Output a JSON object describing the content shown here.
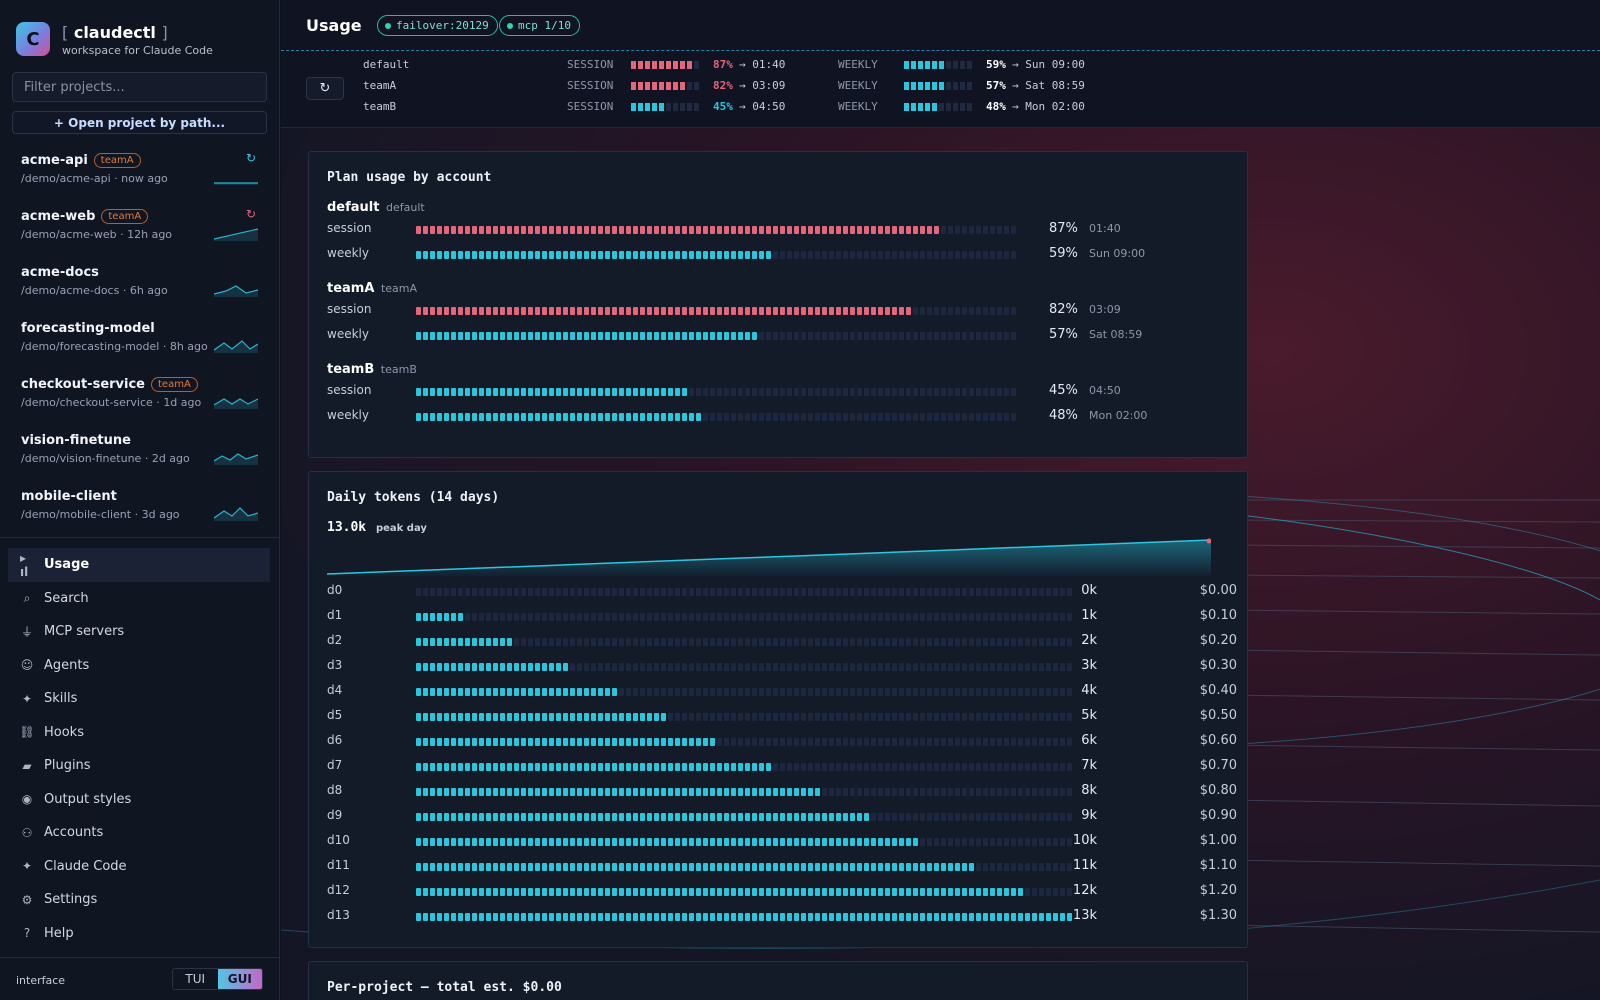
{
  "brand": {
    "logo_letter": "C",
    "bracket_open": "[",
    "name": "claudectl",
    "bracket_close": "]",
    "subtitle": "workspace for Claude Code"
  },
  "sidebar": {
    "filter_placeholder": "Filter projects...",
    "open_project_label": "+ Open project by path...",
    "projects": [
      {
        "name": "acme-api",
        "tag": "teamA",
        "path": "/demo/acme-api",
        "age": "now ago",
        "refresh": true,
        "refresh_color": "#3cc6e8"
      },
      {
        "name": "acme-web",
        "tag": "teamA",
        "path": "/demo/acme-web",
        "age": "12h ago",
        "refresh": true,
        "refresh_color": "#e4667a"
      },
      {
        "name": "acme-docs",
        "tag": "",
        "path": "/demo/acme-docs",
        "age": "6h ago"
      },
      {
        "name": "forecasting-model",
        "tag": "",
        "path": "/demo/forecasting-model",
        "age": "8h ago"
      },
      {
        "name": "checkout-service",
        "tag": "teamA",
        "path": "/demo/checkout-service",
        "age": "1d ago"
      },
      {
        "name": "vision-finetune",
        "tag": "",
        "path": "/demo/vision-finetune",
        "age": "2d ago"
      },
      {
        "name": "mobile-client",
        "tag": "",
        "path": "/demo/mobile-client",
        "age": "3d ago"
      }
    ],
    "nav": [
      {
        "label": "Usage",
        "icon": "bar-chart-icon",
        "glyph": "▸ ıl",
        "active": true
      },
      {
        "label": "Search",
        "icon": "search-icon",
        "glyph": "⌕"
      },
      {
        "label": "MCP servers",
        "icon": "plug-icon",
        "glyph": "⏚"
      },
      {
        "label": "Agents",
        "icon": "robot-icon",
        "glyph": "☺"
      },
      {
        "label": "Skills",
        "icon": "sparkle-icon",
        "glyph": "✦"
      },
      {
        "label": "Hooks",
        "icon": "link-icon",
        "glyph": "⛓"
      },
      {
        "label": "Plugins",
        "icon": "folder-icon",
        "glyph": "▰"
      },
      {
        "label": "Output styles",
        "icon": "palette-icon",
        "glyph": "◉"
      },
      {
        "label": "Accounts",
        "icon": "people-icon",
        "glyph": "⚇"
      },
      {
        "label": "Claude Code",
        "icon": "sparkle-icon",
        "glyph": "✦"
      },
      {
        "label": "Settings",
        "icon": "gear-icon",
        "glyph": "⚙"
      },
      {
        "label": "Help",
        "icon": "help-icon",
        "glyph": "?"
      }
    ],
    "interface_label": "interface",
    "interface_options": {
      "tui": "TUI",
      "gui": "GUI",
      "selected": "GUI"
    }
  },
  "header": {
    "title": "Usage",
    "pills": [
      "failover:20129",
      "mcp 1/10"
    ],
    "refresh_glyph": "↻"
  },
  "status_strip": [
    {
      "account": "default",
      "session_label": "SESSION",
      "session_pct": "87%",
      "session_reset": "→ 01:40",
      "session_level": 0.87,
      "session_color": "#e4667a",
      "weekly_label": "WEEKLY",
      "weekly_pct": "59%",
      "weekly_reset": "→ Sun 09:00",
      "weekly_level": 0.59,
      "weekly_color": "#28c7dd"
    },
    {
      "account": "teamA",
      "session_label": "SESSION",
      "session_pct": "82%",
      "session_reset": "→ 03:09",
      "session_level": 0.82,
      "session_color": "#e4667a",
      "weekly_label": "WEEKLY",
      "weekly_pct": "57%",
      "weekly_reset": "→ Sat 08:59",
      "weekly_level": 0.57,
      "weekly_color": "#28c7dd"
    },
    {
      "account": "teamB",
      "session_label": "SESSION",
      "session_pct": "45%",
      "session_reset": "→ 04:50",
      "session_level": 0.45,
      "session_color": "#28c7dd",
      "weekly_label": "WEEKLY",
      "weekly_pct": "48%",
      "weekly_reset": "→ Mon 02:00",
      "weekly_level": 0.48,
      "weekly_color": "#28c7dd"
    }
  ],
  "plan_usage": {
    "title": "Plan usage by account",
    "accounts": [
      {
        "name": "default",
        "sub": "default",
        "rows": [
          {
            "label": "session",
            "level": 0.87,
            "pct": "87%",
            "reset": "01:40",
            "color": "#e4667a"
          },
          {
            "label": "weekly",
            "level": 0.59,
            "pct": "59%",
            "reset": "Sun 09:00",
            "color": "#28c7dd"
          }
        ]
      },
      {
        "name": "teamA",
        "sub": "teamA",
        "rows": [
          {
            "label": "session",
            "level": 0.82,
            "pct": "82%",
            "reset": "03:09",
            "color": "#e4667a"
          },
          {
            "label": "weekly",
            "level": 0.57,
            "pct": "57%",
            "reset": "Sat 08:59",
            "color": "#28c7dd"
          }
        ]
      },
      {
        "name": "teamB",
        "sub": "teamB",
        "rows": [
          {
            "label": "session",
            "level": 0.45,
            "pct": "45%",
            "reset": "04:50",
            "color": "#28c7dd"
          },
          {
            "label": "weekly",
            "level": 0.48,
            "pct": "48%",
            "reset": "Mon 02:00",
            "color": "#28c7dd"
          }
        ]
      }
    ]
  },
  "daily_tokens": {
    "title": "Daily tokens (14 days)",
    "peak_value": "13.0k",
    "peak_label": "peak day",
    "days": [
      {
        "label": "d0",
        "tokens": "0k",
        "cost": "$0.00"
      },
      {
        "label": "d1",
        "tokens": "1k",
        "cost": "$0.10"
      },
      {
        "label": "d2",
        "tokens": "2k",
        "cost": "$0.20"
      },
      {
        "label": "d3",
        "tokens": "3k",
        "cost": "$0.30"
      },
      {
        "label": "d4",
        "tokens": "4k",
        "cost": "$0.40"
      },
      {
        "label": "d5",
        "tokens": "5k",
        "cost": "$0.50"
      },
      {
        "label": "d6",
        "tokens": "6k",
        "cost": "$0.60"
      },
      {
        "label": "d7",
        "tokens": "7k",
        "cost": "$0.70"
      },
      {
        "label": "d8",
        "tokens": "8k",
        "cost": "$0.80"
      },
      {
        "label": "d9",
        "tokens": "9k",
        "cost": "$0.90"
      },
      {
        "label": "d10",
        "tokens": "10k",
        "cost": "$1.00"
      },
      {
        "label": "d11",
        "tokens": "11k",
        "cost": "$1.10"
      },
      {
        "label": "d12",
        "tokens": "12k",
        "cost": "$1.20"
      },
      {
        "label": "d13",
        "tokens": "13k",
        "cost": "$1.30"
      }
    ],
    "bar_color": "#28c7dd"
  },
  "chart_data": {
    "type": "bar",
    "categories": [
      "d0",
      "d1",
      "d2",
      "d3",
      "d4",
      "d5",
      "d6",
      "d7",
      "d8",
      "d9",
      "d10",
      "d11",
      "d12",
      "d13"
    ],
    "values": [
      0,
      1000,
      2000,
      3000,
      4000,
      5000,
      6000,
      7000,
      8000,
      9000,
      10000,
      11000,
      12000,
      13000
    ],
    "title": "Daily tokens (14 days)",
    "xlabel": "",
    "ylabel": "",
    "ylim": [
      0,
      13000
    ]
  },
  "per_project": {
    "title": "Per-project — total est. $0.00"
  }
}
